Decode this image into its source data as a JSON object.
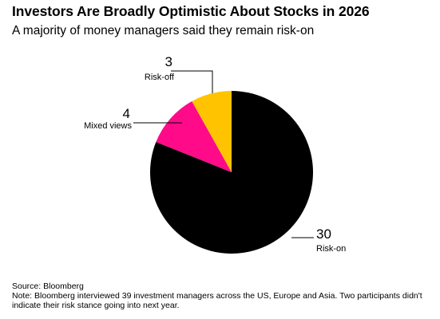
{
  "title": "Investors Are Broadly Optimistic About Stocks in 2026",
  "subtitle": "A majority of money managers said they remain risk-on",
  "source": "Source: Bloomberg",
  "note": "Note: Bloomberg interviewed 39 investment managers across the US, Europe and Asia. Two participants didn't indicate their risk stance going into next year.",
  "chart_data": {
    "type": "pie",
    "title": "Investors Are Broadly Optimistic About Stocks in 2026",
    "subtitle": "A majority of money managers said they remain risk-on",
    "start": "12 o'clock",
    "direction": "clockwise",
    "slices": [
      {
        "label": "Risk-on",
        "value": 30,
        "color": "#000000"
      },
      {
        "label": "Mixed views",
        "value": 4,
        "color": "#ff0a88"
      },
      {
        "label": "Risk-off",
        "value": 3,
        "color": "#ffc300"
      }
    ],
    "total": 37
  }
}
